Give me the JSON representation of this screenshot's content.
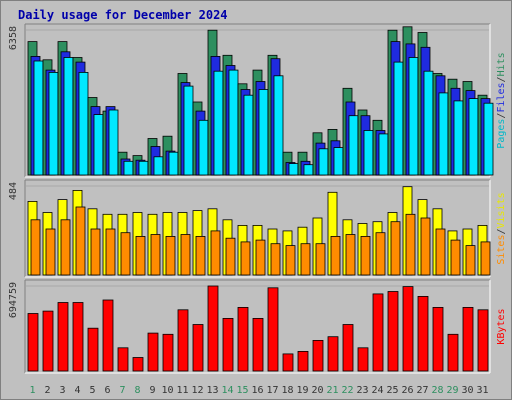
{
  "chart_data": {
    "type": "bar",
    "title": "Daily usage for December 2024",
    "x": [
      "1",
      "2",
      "3",
      "4",
      "5",
      "6",
      "7",
      "8",
      "9",
      "10",
      "11",
      "12",
      "13",
      "14",
      "15",
      "16",
      "17",
      "18",
      "19",
      "20",
      "21",
      "22",
      "23",
      "24",
      "25",
      "26",
      "27",
      "28",
      "29",
      "30",
      "31"
    ],
    "weekend_days": [
      "1",
      "7",
      "8",
      "14",
      "15",
      "21",
      "22",
      "28",
      "29"
    ],
    "panels": [
      {
        "name": "hits-files-pages",
        "ymax_label": "6358",
        "ymax": 6358,
        "axis_label_parts": [
          "Pages",
          "/",
          "Files",
          "/",
          "Hits"
        ],
        "series": [
          {
            "name": "Hits",
            "color": "#2d8f5f",
            "values": [
              5850,
              5050,
              5850,
              5150,
              3400,
              2800,
              1000,
              850,
              1600,
              1700,
              4450,
              3200,
              6350,
              5250,
              4000,
              4600,
              5250,
              1000,
              1000,
              1850,
              2000,
              3800,
              2850,
              2400,
              6350,
              6500,
              6250,
              4450,
              4200,
              4100,
              3500
            ]
          },
          {
            "name": "Files",
            "color": "#1f2be0",
            "values": [
              5200,
              4600,
              5400,
              4950,
              3000,
              3000,
              700,
              650,
              1250,
              1050,
              4050,
              2800,
              5200,
              4800,
              3750,
              4100,
              5100,
              550,
              600,
              1400,
              1500,
              3200,
              2600,
              1950,
              5850,
              5750,
              5600,
              4350,
              3800,
              3700,
              3350
            ]
          },
          {
            "name": "Pages",
            "color": "#00e8ff",
            "values": [
              5000,
              4500,
              5150,
              4500,
              2650,
              2850,
              600,
              600,
              800,
              1000,
              3900,
              2400,
              4550,
              4600,
              3500,
              3750,
              4350,
              500,
              450,
              1150,
              1200,
              2600,
              1950,
              1800,
              4950,
              5150,
              4550,
              3600,
              3250,
              3350,
              3150
            ]
          }
        ]
      },
      {
        "name": "visits-sites",
        "ymax_label": "484",
        "ymax": 484,
        "axis_label_parts": [
          "Sites",
          "/",
          "Visits"
        ],
        "series": [
          {
            "name": "Visits",
            "color": "#ffff00",
            "values": [
              400,
              340,
              410,
              460,
              360,
              330,
              330,
              340,
              330,
              340,
              340,
              350,
              360,
              300,
              270,
              270,
              250,
              240,
              260,
              310,
              450,
              300,
              280,
              290,
              340,
              480,
              410,
              360,
              240,
              250,
              270
            ]
          },
          {
            "name": "Sites",
            "color": "#ff8c00",
            "values": [
              300,
              250,
              300,
              370,
              250,
              250,
              230,
              210,
              220,
              210,
              220,
              210,
              240,
              200,
              180,
              190,
              170,
              160,
              170,
              170,
              210,
              220,
              210,
              230,
              290,
              330,
              310,
              250,
              190,
              160,
              180
            ]
          }
        ]
      },
      {
        "name": "kbytes",
        "ymax_label": "694759",
        "ymax": 694759,
        "axis_label_parts": [
          "KBytes"
        ],
        "series": [
          {
            "name": "KBytes",
            "color": "#ff0000",
            "values": [
              470000,
              490000,
              560000,
              560000,
              350000,
              580000,
              190000,
              110000,
              310000,
              300000,
              500000,
              380000,
              694759,
              430000,
              520000,
              430000,
              680000,
              140000,
              160000,
              250000,
              280000,
              380000,
              190000,
              630000,
              650000,
              690000,
              610000,
              520000,
              300000,
              520000,
              500000
            ]
          }
        ]
      }
    ]
  }
}
